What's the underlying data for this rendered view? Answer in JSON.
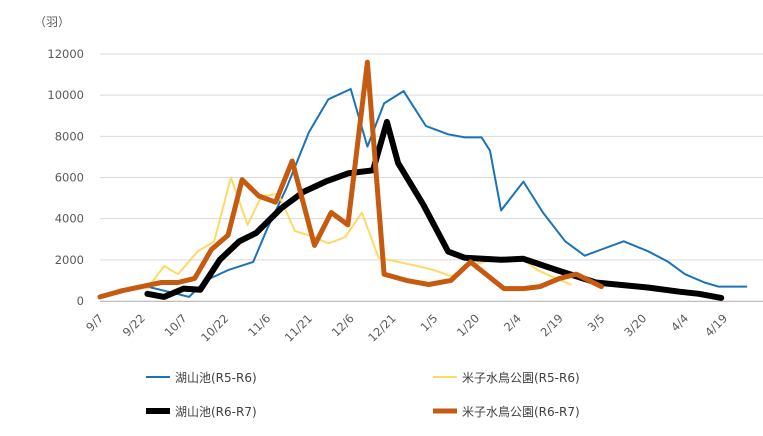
{
  "chart_data": {
    "type": "line",
    "unit_label": "（羽）",
    "ylim": [
      0,
      12000
    ],
    "yticks": [
      0,
      2000,
      4000,
      6000,
      8000,
      10000,
      12000
    ],
    "ytick_labels": [
      "0",
      "2000",
      "4000",
      "6000",
      "8000",
      "10000",
      "12000"
    ],
    "xlim": [
      0,
      224
    ],
    "xtick_positions": [
      0,
      15,
      30,
      45,
      60,
      75,
      90,
      105,
      120,
      135,
      150,
      165,
      180,
      195,
      210,
      224
    ],
    "xtick_labels": [
      "9/7",
      "9/22",
      "10/7",
      "10/22",
      "11/6",
      "11/21",
      "12/6",
      "12/21",
      "1/5",
      "1/20",
      "2/4",
      "2/19",
      "3/5",
      "3/20",
      "4/4",
      "4/19"
    ],
    "grid": "horizontal",
    "legend_position": "bottom",
    "series": [
      {
        "name": "湖山池(R5-R6)",
        "color": "#1a73b8",
        "width": 2,
        "points": [
          [
            17,
            700
          ],
          [
            23,
            500
          ],
          [
            32,
            200
          ],
          [
            38,
            1000
          ],
          [
            46,
            1500
          ],
          [
            55,
            1900
          ],
          [
            60,
            3500
          ],
          [
            67,
            5500
          ],
          [
            75,
            8200
          ],
          [
            82,
            9800
          ],
          [
            90,
            10300
          ],
          [
            96,
            7500
          ],
          [
            102,
            9600
          ],
          [
            109,
            10200
          ],
          [
            117,
            8500
          ],
          [
            125,
            8100
          ],
          [
            131,
            7950
          ],
          [
            137,
            7950
          ],
          [
            140,
            7300
          ],
          [
            144,
            4400
          ],
          [
            152,
            5800
          ],
          [
            159,
            4300
          ],
          [
            167,
            2900
          ],
          [
            174,
            2200
          ],
          [
            180,
            2500
          ],
          [
            188,
            2900
          ],
          [
            197,
            2400
          ],
          [
            204,
            1900
          ],
          [
            210,
            1300
          ],
          [
            217,
            900
          ],
          [
            222,
            700
          ],
          [
            232,
            700
          ]
        ]
      },
      {
        "name": "米子水鳥公園(R5-R6)",
        "color": "#ffd966",
        "width": 2,
        "points": [
          [
            17,
            600
          ],
          [
            23,
            1700
          ],
          [
            28,
            1300
          ],
          [
            35,
            2400
          ],
          [
            41,
            2900
          ],
          [
            47,
            6000
          ],
          [
            53,
            3700
          ],
          [
            58,
            5100
          ],
          [
            64,
            5200
          ],
          [
            70,
            3400
          ],
          [
            77,
            3100
          ],
          [
            82,
            2800
          ],
          [
            88,
            3100
          ],
          [
            94,
            4300
          ],
          [
            100,
            2100
          ],
          [
            107,
            1900
          ],
          [
            114,
            1700
          ],
          [
            120,
            1500
          ],
          [
            126,
            1200
          ],
          [
            132,
            1700
          ],
          [
            138,
            1900
          ],
          [
            145,
            2100
          ],
          [
            152,
            2000
          ],
          [
            157,
            1500
          ],
          [
            162,
            1200
          ],
          [
            169,
            800
          ]
        ]
      },
      {
        "name": "湖山池(R6-R7)",
        "color": "#000000",
        "width": 6,
        "points": [
          [
            17,
            350
          ],
          [
            23,
            200
          ],
          [
            30,
            600
          ],
          [
            36,
            550
          ],
          [
            43,
            2000
          ],
          [
            50,
            2900
          ],
          [
            56,
            3300
          ],
          [
            65,
            4500
          ],
          [
            73,
            5300
          ],
          [
            81,
            5800
          ],
          [
            89,
            6200
          ],
          [
            98,
            6350
          ],
          [
            103,
            8700
          ],
          [
            107,
            6700
          ],
          [
            116,
            4700
          ],
          [
            125,
            2400
          ],
          [
            131,
            2100
          ],
          [
            144,
            2000
          ],
          [
            152,
            2050
          ],
          [
            164,
            1500
          ],
          [
            178,
            900
          ],
          [
            197,
            650
          ],
          [
            208,
            450
          ],
          [
            215,
            350
          ],
          [
            223,
            150
          ]
        ]
      },
      {
        "name": "米子水鳥公園(R6-R7)",
        "color": "#c55a11",
        "width": 5,
        "points": [
          [
            0,
            200
          ],
          [
            8,
            500
          ],
          [
            15,
            700
          ],
          [
            22,
            900
          ],
          [
            28,
            900
          ],
          [
            34,
            1100
          ],
          [
            40,
            2500
          ],
          [
            46,
            3200
          ],
          [
            51,
            5900
          ],
          [
            57,
            5100
          ],
          [
            63,
            4800
          ],
          [
            69,
            6800
          ],
          [
            77,
            2700
          ],
          [
            83,
            4300
          ],
          [
            89,
            3700
          ],
          [
            96,
            11600
          ],
          [
            102,
            1300
          ],
          [
            110,
            1000
          ],
          [
            118,
            800
          ],
          [
            126,
            1000
          ],
          [
            133,
            1900
          ],
          [
            145,
            600
          ],
          [
            152,
            600
          ],
          [
            158,
            700
          ],
          [
            165,
            1100
          ],
          [
            171,
            1300
          ],
          [
            180,
            700
          ]
        ]
      }
    ]
  }
}
